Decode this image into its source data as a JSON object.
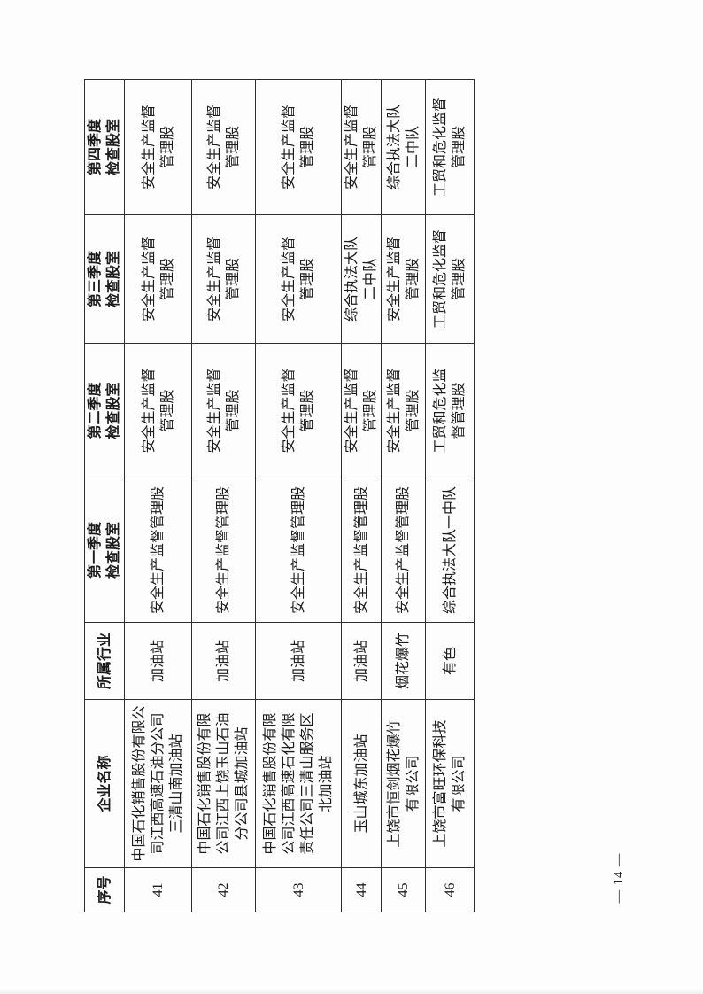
{
  "page": {
    "number_label": "— 14 —"
  },
  "table": {
    "headers": [
      "序号",
      "企业名称",
      "所属行业",
      "第一季度\n检查股室",
      "第二季度\n检查股室",
      "第三季度\n检查股室",
      "第四季度\n检查股室"
    ],
    "rows": [
      {
        "no": "41",
        "name": "中国石化销售股份有限公\n司江西高速石油分公司\n三清山南加油站",
        "industry": "加油站",
        "q1": "安全生产监督管理股",
        "q2": "安全生产监督\n管理股",
        "q3": "安全生产监督\n管理股",
        "q4": "安全生产监督\n管理股"
      },
      {
        "no": "42",
        "name": "中国石化销售股份有限\n公司江西上饶玉山石油\n分公司县城加油站",
        "industry": "加油站",
        "q1": "安全生产监督管理股",
        "q2": "安全生产监督\n管理股",
        "q3": "安全生产监督\n管理股",
        "q4": "安全生产监督\n管理股"
      },
      {
        "no": "43",
        "name": "中国石化销售股份有限\n公司江西高速石化有限\n责任公司三清山服务区\n北加油站",
        "industry": "加油站",
        "q1": "安全生产监督管理股",
        "q2": "安全生产监督\n管理股",
        "q3": "安全生产监督\n管理股",
        "q4": "安全生产监督\n管理股"
      },
      {
        "no": "44",
        "name": "玉山城东加油站",
        "industry": "加油站",
        "q1": "安全生产监督管理股",
        "q2": "安全生产监督\n管理股",
        "q3": "综合执法大队\n二中队",
        "q4": "安全生产监督\n管理股"
      },
      {
        "no": "45",
        "name": "上饶市恒剑烟花爆竹\n有限公司",
        "industry": "烟花爆竹",
        "q1": "安全生产监督管理股",
        "q2": "安全生产监督\n管理股",
        "q3": "安全生产监督\n管理股",
        "q4": "综合执法大队\n二中队"
      },
      {
        "no": "46",
        "name": "上饶市富旺环保科技\n有限公司",
        "industry": "有色",
        "q1": "综合执法大队一中队",
        "q2": "工贸和危化监\n督管理股",
        "q3": "工贸和危化监督\n管理股",
        "q4": "工贸和危化监督\n管理股"
      }
    ]
  }
}
